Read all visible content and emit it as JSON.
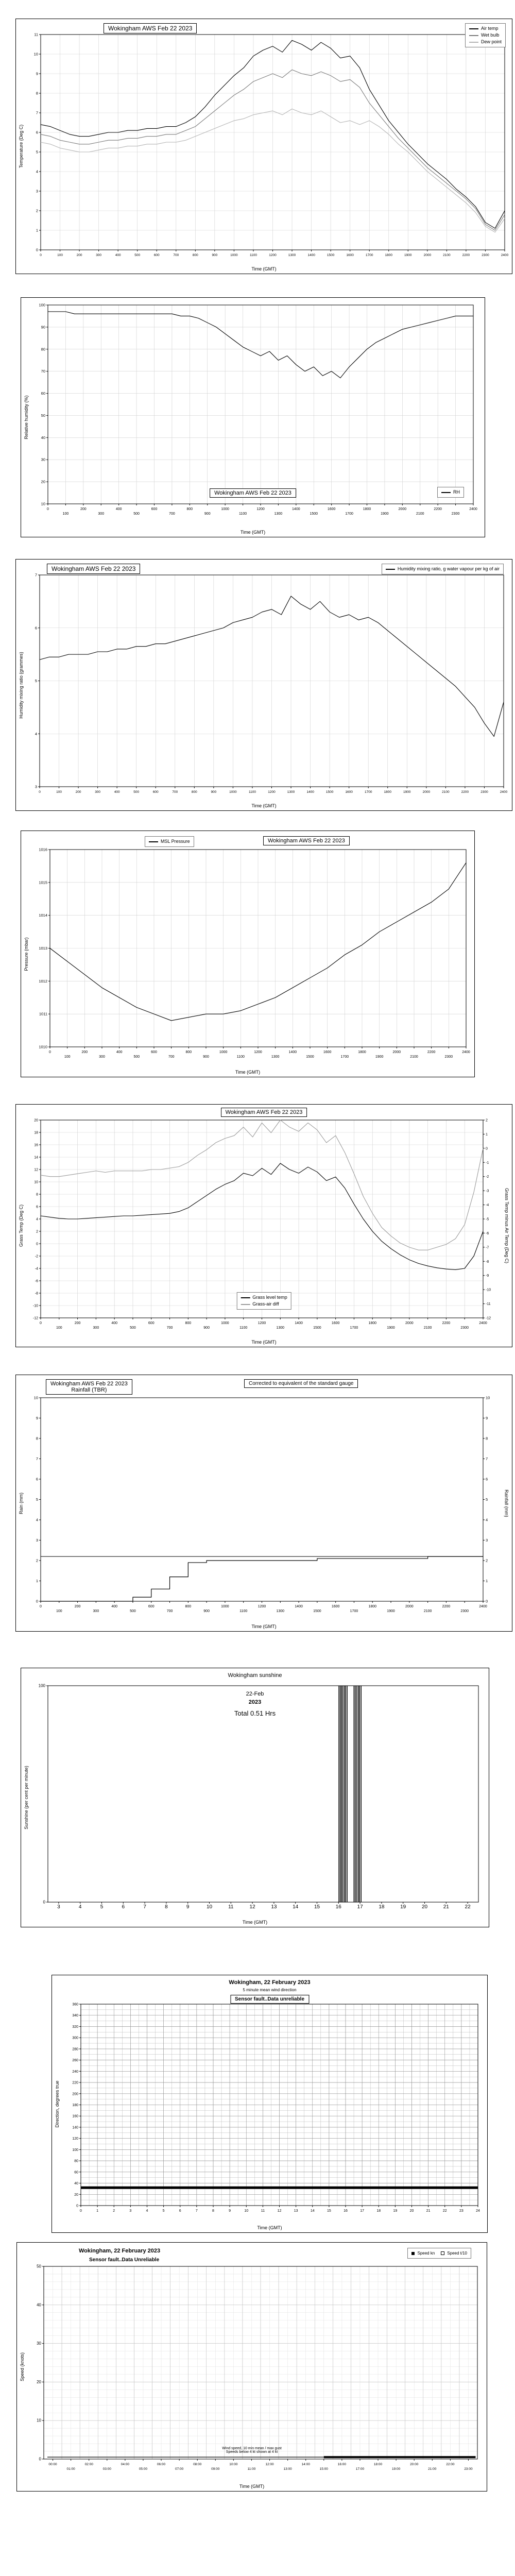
{
  "chart_data": [
    {
      "id": "air-temperature",
      "type": "line",
      "title": "Wokingham AWS Feb 22 2023",
      "xlabel": "Time (GMT)",
      "ylabel": "Temperature (Deg C)",
      "xlim": [
        0,
        2400
      ],
      "ylim": [
        0,
        11
      ],
      "xtick_step": 100,
      "ytick_step": 1,
      "x0": 0,
      "dx": 50,
      "grid_x": 100,
      "grid_y": 1,
      "xtick_fs": 6.5,
      "ytick_fs": 7.5,
      "layout": {
        "l": 48,
        "r": 14,
        "t": 30,
        "b": 46
      },
      "series": [
        {
          "name": "Air temp",
          "color": "#000000",
          "values": [
            6.4,
            6.3,
            6.1,
            5.9,
            5.8,
            5.8,
            5.9,
            6.0,
            6.0,
            6.1,
            6.1,
            6.2,
            6.2,
            6.3,
            6.3,
            6.5,
            6.8,
            7.3,
            7.9,
            8.4,
            8.9,
            9.3,
            9.9,
            10.2,
            10.4,
            10.1,
            10.7,
            10.5,
            10.2,
            10.6,
            10.3,
            9.8,
            9.9,
            9.3,
            8.2,
            7.4,
            6.6,
            6.0,
            5.4,
            4.9,
            4.4,
            4.0,
            3.6,
            3.1,
            2.7,
            2.2,
            1.4,
            1.1,
            2.0
          ]
        },
        {
          "name": "Wet bulb",
          "color": "#7a7a7a",
          "values": [
            5.9,
            5.8,
            5.6,
            5.5,
            5.4,
            5.4,
            5.5,
            5.6,
            5.6,
            5.7,
            5.7,
            5.8,
            5.8,
            5.9,
            5.9,
            6.1,
            6.3,
            6.7,
            7.1,
            7.5,
            7.9,
            8.2,
            8.6,
            8.8,
            9.0,
            8.8,
            9.2,
            9.0,
            8.9,
            9.1,
            8.9,
            8.6,
            8.7,
            8.3,
            7.5,
            6.9,
            6.3,
            5.7,
            5.2,
            4.7,
            4.2,
            3.8,
            3.4,
            3.0,
            2.6,
            2.1,
            1.3,
            1.0,
            1.8
          ]
        },
        {
          "name": "Dew point",
          "color": "#b4b4b4",
          "values": [
            5.5,
            5.4,
            5.2,
            5.1,
            5.0,
            5.0,
            5.1,
            5.2,
            5.2,
            5.3,
            5.3,
            5.4,
            5.4,
            5.5,
            5.5,
            5.6,
            5.8,
            6.0,
            6.2,
            6.4,
            6.6,
            6.7,
            6.9,
            7.0,
            7.1,
            6.9,
            7.2,
            7.0,
            6.9,
            7.1,
            6.8,
            6.5,
            6.6,
            6.4,
            6.6,
            6.3,
            5.9,
            5.4,
            5.0,
            4.5,
            4.0,
            3.6,
            3.2,
            2.8,
            2.4,
            1.9,
            1.2,
            0.9,
            1.6
          ]
        }
      ]
    },
    {
      "id": "relative-humidity",
      "type": "line",
      "title": "Wokingham AWS Feb 22 2023",
      "xlabel": "Time (GMT)",
      "ylabel": "Relative humidity (%)",
      "xlim": [
        0,
        2400
      ],
      "ylim": [
        10,
        100
      ],
      "xtick_step": 100,
      "ytick_step": 10,
      "xtick_two_rows": true,
      "x0": 0,
      "dx": 50,
      "grid_x": 100,
      "grid_y": 10,
      "xtick_fs": 7,
      "ytick_fs": 7.5,
      "layout": {
        "l": 52,
        "r": 22,
        "t": 14,
        "b": 64
      },
      "series": [
        {
          "name": "RH",
          "color": "#000000",
          "values": [
            97,
            97,
            97,
            96,
            96,
            96,
            96,
            96,
            96,
            96,
            96,
            96,
            96,
            96,
            96,
            95,
            95,
            94,
            92,
            90,
            87,
            84,
            81,
            79,
            77,
            79,
            75,
            77,
            73,
            70,
            72,
            68,
            70,
            67,
            72,
            76,
            80,
            83,
            85,
            87,
            89,
            90,
            91,
            92,
            93,
            94,
            95,
            95,
            95
          ]
        }
      ]
    },
    {
      "id": "humidity-mixing-ratio",
      "type": "line",
      "title": "Wokingham AWS Feb 22 2023",
      "xlabel": "Time (GMT)",
      "ylabel": "Humidity mixing ratio (grammes)",
      "xlim": [
        0,
        2400
      ],
      "ylim": [
        3,
        7
      ],
      "xtick_step": 100,
      "ytick_step": 1,
      "x0": 0,
      "dx": 50,
      "grid_x": 100,
      "grid_y": 1,
      "xtick_fs": 6.5,
      "ytick_fs": 7.5,
      "layout": {
        "l": 46,
        "r": 16,
        "t": 30,
        "b": 46
      },
      "series": [
        {
          "name": "Humidity mixing ratio, g water vapour per kg of air",
          "color": "#000000",
          "values": [
            5.4,
            5.45,
            5.45,
            5.5,
            5.5,
            5.5,
            5.55,
            5.55,
            5.6,
            5.6,
            5.65,
            5.65,
            5.7,
            5.7,
            5.75,
            5.8,
            5.85,
            5.9,
            5.95,
            6.0,
            6.1,
            6.15,
            6.2,
            6.3,
            6.35,
            6.25,
            6.6,
            6.45,
            6.35,
            6.5,
            6.3,
            6.2,
            6.25,
            6.15,
            6.2,
            6.1,
            5.95,
            5.8,
            5.65,
            5.5,
            5.35,
            5.2,
            5.05,
            4.9,
            4.7,
            4.5,
            4.2,
            3.95,
            4.6
          ]
        }
      ]
    },
    {
      "id": "msl-pressure",
      "type": "line",
      "title": "Wokingham AWS Feb 22 2023",
      "xlabel": "Time (GMT)",
      "ylabel": "Pressure (mbar)",
      "xlim": [
        0,
        2400
      ],
      "ylim": [
        1010,
        1016
      ],
      "xtick_step": 100,
      "ytick_step": 1,
      "xtick_two_rows": true,
      "x0": 0,
      "dx": 100,
      "grid_x": 100,
      "grid_y": 1,
      "xtick_fs": 7,
      "ytick_fs": 7.5,
      "layout": {
        "l": 56,
        "r": 16,
        "t": 36,
        "b": 58
      },
      "series": [
        {
          "name": "MSL Pressure",
          "color": "#000000",
          "values": [
            1013.0,
            1012.6,
            1012.2,
            1011.8,
            1011.5,
            1011.2,
            1011.0,
            1010.8,
            1010.9,
            1011.0,
            1011.0,
            1011.1,
            1011.3,
            1011.5,
            1011.8,
            1012.1,
            1012.4,
            1012.8,
            1013.1,
            1013.5,
            1013.8,
            1014.1,
            1014.4,
            1014.8,
            1015.6
          ]
        }
      ]
    },
    {
      "id": "grass-temperature",
      "type": "line",
      "title": "Wokingham AWS Feb 22 2023",
      "xlabel": "Time (GMT)",
      "ylabel": "Grass Temp (Deg C)",
      "y2label": "Grass Temp minus Air Temp (Deg C)",
      "xlim": [
        0,
        2400
      ],
      "ylim": [
        -12,
        20
      ],
      "y2lim": [
        -12,
        2
      ],
      "xtick_step": 100,
      "ytick_step": 2,
      "y2tick_step": 1,
      "xtick_two_rows": true,
      "x0": 0,
      "dx": 50,
      "grid_x": 100,
      "grid_y": 2,
      "xtick_fs": 7,
      "ytick_fs": 7,
      "y2tick_fs": 7,
      "layout": {
        "l": 48,
        "r": 56,
        "t": 30,
        "b": 56
      },
      "series": [
        {
          "name": "Grass level temp",
          "color": "#000000",
          "values": [
            4.5,
            4.3,
            4.1,
            4.0,
            4.0,
            4.1,
            4.2,
            4.3,
            4.4,
            4.5,
            4.5,
            4.6,
            4.7,
            4.8,
            4.9,
            5.2,
            5.8,
            6.8,
            7.8,
            8.8,
            9.6,
            10.2,
            11.4,
            11.0,
            12.2,
            11.2,
            13.0,
            12.0,
            11.4,
            12.4,
            11.6,
            10.2,
            10.8,
            9.0,
            6.4,
            4.0,
            2.0,
            0.4,
            -0.8,
            -1.8,
            -2.6,
            -3.2,
            -3.6,
            -3.9,
            -4.1,
            -4.2,
            -4.0,
            -2.0,
            2.0
          ]
        },
        {
          "name": "Grass-air diff",
          "color": "#9a9a9a",
          "axis": "y2",
          "values": [
            -1.9,
            -2.0,
            -2.0,
            -1.9,
            -1.8,
            -1.7,
            -1.6,
            -1.7,
            -1.6,
            -1.6,
            -1.6,
            -1.6,
            -1.5,
            -1.5,
            -1.4,
            -1.3,
            -1.0,
            -0.5,
            -0.1,
            0.4,
            0.7,
            0.9,
            1.5,
            0.8,
            1.8,
            1.1,
            2.0,
            1.5,
            1.2,
            1.8,
            1.3,
            0.4,
            0.9,
            -0.3,
            -1.8,
            -3.4,
            -4.6,
            -5.6,
            -6.2,
            -6.7,
            -7.0,
            -7.2,
            -7.2,
            -7.0,
            -6.8,
            -6.4,
            -5.4,
            -3.1,
            0.0
          ]
        }
      ]
    },
    {
      "id": "rainfall-tbr",
      "type": "line",
      "title": "Wokingham AWS Feb 22 2023",
      "title2": "Rainfall (TBR)",
      "note": "Corrected to equivalent of the standard gauge",
      "xlabel": "Time (GMT)",
      "ylabel": "Rain (mm)",
      "y2label": "Rainfall (mm)",
      "xlim": [
        0,
        2400
      ],
      "ylim": [
        0,
        10
      ],
      "y2lim": [
        0,
        10
      ],
      "xtick_step": 100,
      "ytick_step": 1,
      "y2tick_step": 1,
      "xtick_two_rows": true,
      "x0": 0,
      "dx": 100,
      "xtick_fs": 7,
      "ytick_fs": 7.5,
      "y2tick_fs": 7.5,
      "layout": {
        "l": 48,
        "r": 56,
        "t": 44,
        "b": 58
      },
      "series": [
        {
          "name": "Daily total",
          "type": "hline",
          "y": 2.2,
          "x1": 0,
          "x2": 2400,
          "width": 1,
          "color": "#000000"
        },
        {
          "name": "Cumulative rainfall",
          "type": "step",
          "color": "#000000",
          "width": 1.2,
          "values": [
            0,
            0,
            0,
            0,
            0,
            0.2,
            0.6,
            1.2,
            1.9,
            2.0,
            2.0,
            2.0,
            2.0,
            2.0,
            2.0,
            2.1,
            2.1,
            2.1,
            2.1,
            2.1,
            2.1,
            2.2,
            2.2,
            2.2,
            2.2
          ]
        }
      ]
    },
    {
      "id": "sunshine",
      "type": "bar",
      "title": "Wokingham sunshine",
      "date_label": "22-Feb",
      "year_label": "2023",
      "total_label": "Total 0.51 Hrs",
      "xlabel": "Time (GMT)",
      "ylabel": "Sunshine (per cent per minute)",
      "xlim": [
        2.5,
        22.5
      ],
      "ylim": [
        0,
        100
      ],
      "xtick_step": 1,
      "xtick_start": 0.5,
      "ytick_step": 100,
      "xtick_fs": 10,
      "ytick_fs": 8,
      "layout": {
        "l": 52,
        "r": 20,
        "t": 34,
        "b": 48
      },
      "series": [
        {
          "name": "Sunshine minutes",
          "type": "bars",
          "color": "#000000",
          "width": 1.5,
          "xs": [
            16.02,
            16.08,
            16.14,
            16.2,
            16.27,
            16.33,
            16.4,
            16.72,
            16.78,
            16.85,
            16.92,
            16.98,
            17.05
          ],
          "values": [
            100,
            100,
            100,
            100,
            100,
            100,
            100,
            100,
            100,
            100,
            100,
            100,
            100
          ]
        }
      ]
    },
    {
      "id": "wind-direction",
      "type": "line",
      "title": "Wokingham,  22 February 2023",
      "subtitle": "5 minute mean wind direction",
      "fault_label": "Sensor fault..Data unreliable",
      "xlabel": "Time (GMT)",
      "ylabel": "Direction, degrees true",
      "xlim": [
        0,
        24
      ],
      "ylim": [
        0,
        360
      ],
      "xtick_step": 1,
      "ytick_step": 20,
      "grid_x": 1,
      "grid_x_minor": 0.5,
      "grid_y": 20,
      "grid_y_minor": 10,
      "grid_major_color": "#8f8f8f",
      "grid_minor_color": "#b8b8b8",
      "xtick_fs": 7,
      "ytick_fs": 7,
      "layout": {
        "l": 56,
        "r": 18,
        "t": 56,
        "b": 52
      },
      "series": [
        {
          "name": "Wind direction",
          "type": "hline",
          "y": 32,
          "x1": 0,
          "x2": 24,
          "width": 5,
          "color": "#000000"
        }
      ]
    },
    {
      "id": "wind-speed",
      "type": "line",
      "title": "Wokingham,  22 February 2023",
      "fault_label": "Sensor fault..Data Unreliable",
      "annotation1": "Wind speed, 10 min mean / max gust",
      "annotation2": "Speeds below 4 kt shown at 4 kt",
      "xlabel": "Time (GMT)",
      "ylabel": "Speed (knots)",
      "xlim": [
        -0.5,
        23.5
      ],
      "ylim": [
        0,
        50
      ],
      "xtick_step": 1,
      "xtick_start": 0.5,
      "ytick_step": 10,
      "xtick_fmt": "time",
      "xtick_two_rows": true,
      "grid_x": 1,
      "grid_x_minor": 0.5,
      "grid_y": 10,
      "grid_y_minor": 2,
      "grid_major_color": "#bdbdbd",
      "grid_minor_color": "#e0e0e0",
      "xtick_fs": 6.5,
      "ytick_fs": 8,
      "layout": {
        "l": 52,
        "r": 18,
        "t": 46,
        "b": 62
      },
      "legend": [
        {
          "label": "Speed kn",
          "color": "#000000"
        },
        {
          "label": "Speed t/10",
          "color": "#000000"
        }
      ],
      "series": [
        {
          "name": "Speed kn",
          "type": "hline",
          "y": 0.5,
          "x1": -0.3,
          "x2": 23.4,
          "width": 1.2,
          "color": "#000000"
        },
        {
          "name": "Speed t/10",
          "type": "hline",
          "y": 0.5,
          "x1": 15.0,
          "x2": 23.4,
          "width": 4,
          "color": "#000000"
        }
      ]
    }
  ]
}
